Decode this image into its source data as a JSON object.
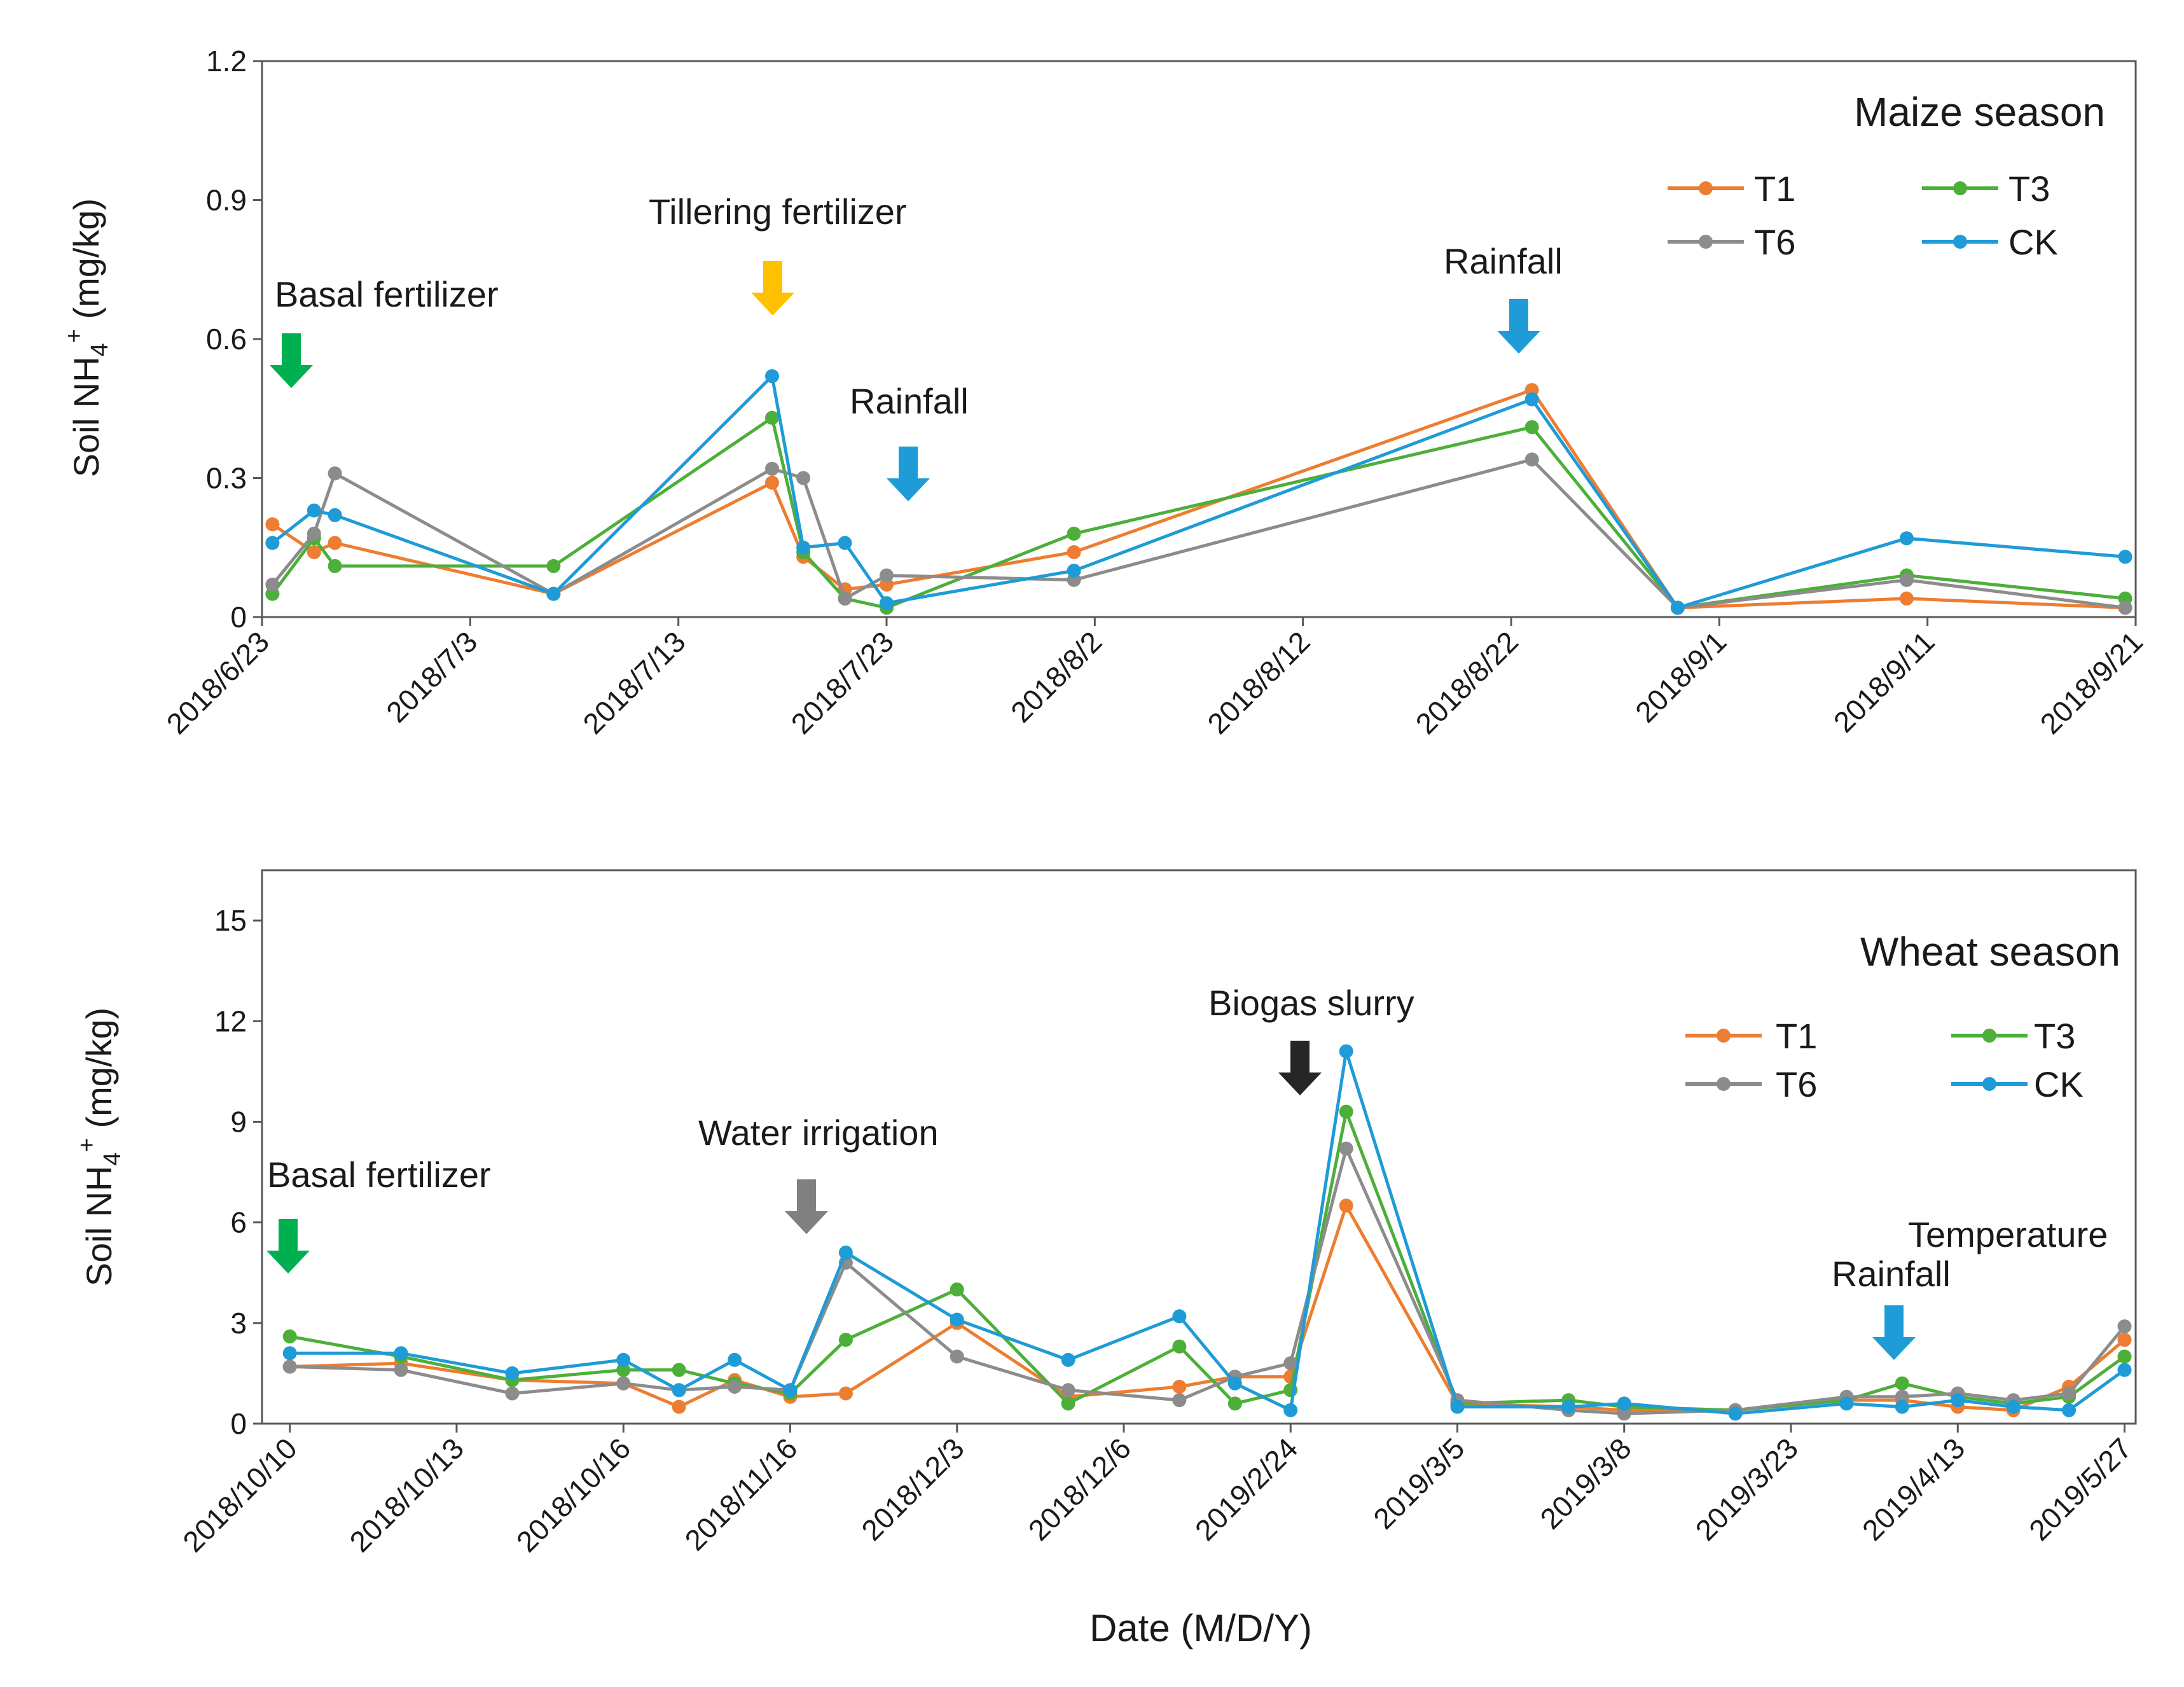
{
  "chart_data": [
    {
      "type": "line",
      "title": "Maize season",
      "ylabel_main": "Soil NH",
      "ylabel_sub": "4",
      "ylabel_sup": "+",
      "ylabel_unit": " (mg/kg)",
      "ylim": [
        0,
        1.2
      ],
      "yticks": [
        "0",
        "0.3",
        "0.6",
        "0.9",
        "1.2"
      ],
      "xlim_days": [
        0,
        90
      ],
      "xtick_labels": [
        "2018/6/23",
        "2018/7/3",
        "2018/7/13",
        "2018/7/23",
        "2018/8/2",
        "2018/8/12",
        "2018/8/22",
        "2018/9/1",
        "2018/9/11",
        "2018/9/21"
      ],
      "series": [
        {
          "name": "T1",
          "color": "#ED7D31",
          "x": [
            0.5,
            2.5,
            3.5,
            14,
            24.5,
            26,
            28,
            30,
            39,
            61,
            68,
            79,
            89.5
          ],
          "y": [
            0.2,
            0.14,
            0.16,
            0.05,
            0.29,
            0.13,
            0.06,
            0.07,
            0.14,
            0.49,
            0.02,
            0.04,
            0.02
          ]
        },
        {
          "name": "T3",
          "color": "#4CAF39",
          "x": [
            0.5,
            2.5,
            3.5,
            14,
            24.5,
            26,
            28,
            30,
            39,
            61,
            68,
            79,
            89.5
          ],
          "y": [
            0.05,
            0.17,
            0.11,
            0.11,
            0.43,
            0.14,
            0.04,
            0.02,
            0.18,
            0.41,
            0.02,
            0.09,
            0.04
          ]
        },
        {
          "name": "T6",
          "color": "#8C8C8C",
          "x": [
            0.5,
            2.5,
            3.5,
            14,
            24.5,
            26,
            28,
            30,
            39,
            61,
            68,
            79,
            89.5
          ],
          "y": [
            0.07,
            0.18,
            0.31,
            0.05,
            0.32,
            0.3,
            0.04,
            0.09,
            0.08,
            0.34,
            0.02,
            0.08,
            0.02
          ]
        },
        {
          "name": "CK",
          "color": "#1F9BD7",
          "x": [
            0.5,
            2.5,
            3.5,
            14,
            24.5,
            26,
            28,
            30,
            39,
            61,
            68,
            79,
            89.5
          ],
          "y": [
            0.16,
            0.23,
            0.22,
            0.05,
            0.52,
            0.15,
            0.16,
            0.03,
            0.1,
            0.47,
            0.02,
            0.17,
            0.13
          ]
        }
      ],
      "annotations": [
        {
          "text": "Basal fertilizer",
          "color": "#00B050"
        },
        {
          "text": "Tillering  fertilizer",
          "color": "#FFC000"
        },
        {
          "text": "Rainfall",
          "color": "#1F9BD7"
        },
        {
          "text": "Rainfall",
          "color": "#1F9BD7"
        }
      ]
    },
    {
      "type": "line",
      "title": "Wheat season",
      "ylabel_main": "Soil NH",
      "ylabel_sub": "4",
      "ylabel_sup": "+",
      "ylabel_unit": " (mg/kg)",
      "xlabel": "Date (M/D/Y)",
      "ylim": [
        0,
        16.5
      ],
      "yticks": [
        "0",
        "3",
        "6",
        "9",
        "12",
        "15"
      ],
      "xlim_index": [
        0,
        33
      ],
      "xtick_labels": [
        "2018/10/10",
        "2018/10/13",
        "2018/10/16",
        "2018/11/16",
        "2018/12/3",
        "2018/12/6",
        "2019/2/24",
        "2019/3/5",
        "2019/3/8",
        "2019/3/23",
        "2019/4/13",
        "2019/5/27"
      ],
      "series": [
        {
          "name": "T1",
          "color": "#ED7D31",
          "x": [
            0,
            2,
            4,
            6,
            7,
            8,
            9,
            10,
            12,
            14,
            16,
            17,
            18,
            19,
            21,
            23,
            24,
            26,
            28,
            29,
            30,
            31,
            32,
            33
          ],
          "y": [
            1.7,
            1.8,
            1.3,
            1.2,
            0.5,
            1.3,
            0.8,
            0.9,
            3,
            0.8,
            1.1,
            1.4,
            1.4,
            6.5,
            0.6,
            0.5,
            0.4,
            0.4,
            0.7,
            0.7,
            0.5,
            0.4,
            1.1,
            2.5
          ]
        },
        {
          "name": "T3",
          "color": "#4CAF39",
          "x": [
            0,
            2,
            4,
            6,
            7,
            8,
            9,
            10,
            12,
            14,
            16,
            17,
            18,
            19,
            21,
            23,
            24,
            26,
            28,
            29,
            30,
            31,
            32,
            33
          ],
          "y": [
            2.6,
            2,
            1.3,
            1.6,
            1.6,
            1.2,
            0.9,
            2.5,
            4,
            0.6,
            2.3,
            0.6,
            1,
            9.3,
            0.6,
            0.7,
            0.5,
            0.4,
            0.7,
            1.2,
            0.8,
            0.6,
            0.8,
            2
          ]
        },
        {
          "name": "T6",
          "color": "#8C8C8C",
          "x": [
            0,
            2,
            4,
            6,
            7,
            8,
            9,
            10,
            12,
            14,
            16,
            17,
            18,
            19,
            21,
            23,
            24,
            26,
            28,
            29,
            30,
            31,
            32,
            33
          ],
          "y": [
            1.7,
            1.6,
            0.9,
            1.2,
            1,
            1.1,
            1,
            4.8,
            2,
            1,
            0.7,
            1.4,
            1.8,
            8.2,
            0.7,
            0.4,
            0.3,
            0.4,
            0.8,
            0.8,
            0.9,
            0.7,
            0.9,
            2.9
          ]
        },
        {
          "name": "CK",
          "color": "#1F9BD7",
          "x": [
            0,
            2,
            4,
            6,
            7,
            8,
            9,
            10,
            12,
            14,
            16,
            17,
            18,
            19,
            21,
            23,
            24,
            26,
            28,
            29,
            30,
            31,
            32,
            33
          ],
          "y": [
            2.1,
            2.1,
            1.5,
            1.9,
            1,
            1.9,
            1,
            5.1,
            3.1,
            1.9,
            3.2,
            1.2,
            0.4,
            11.1,
            0.5,
            0.5,
            0.6,
            0.3,
            0.6,
            0.5,
            0.7,
            0.5,
            0.4,
            1.6
          ]
        }
      ],
      "annotations": [
        {
          "text": "Basal fertilizer",
          "color": "#00B050"
        },
        {
          "text": "Water irrigation",
          "color": "#808080"
        },
        {
          "text": "Biogas slurry",
          "color": "#262626"
        },
        {
          "text": "Rainfall",
          "color": "#1F9BD7"
        },
        {
          "text": "Temperature",
          "color": ""
        }
      ]
    }
  ]
}
